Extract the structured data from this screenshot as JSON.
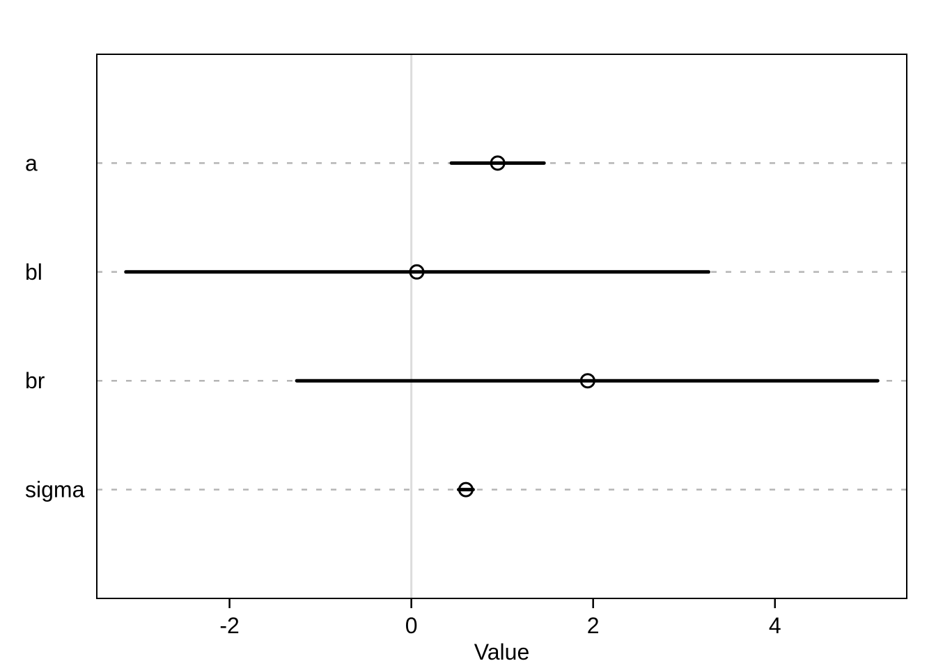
{
  "chart_data": {
    "type": "scatter",
    "subtype": "coefficient-interval-plot",
    "title": "",
    "xlabel": "Value",
    "ylabel": "",
    "categories": [
      "a",
      "bl",
      "br",
      "sigma"
    ],
    "series": [
      {
        "name": "a",
        "estimate": 0.95,
        "lower": 0.44,
        "upper": 1.46
      },
      {
        "name": "bl",
        "estimate": 0.06,
        "lower": -3.14,
        "upper": 3.27
      },
      {
        "name": "br",
        "estimate": 1.94,
        "lower": -1.26,
        "upper": 5.13
      },
      {
        "name": "sigma",
        "estimate": 0.6,
        "lower": 0.52,
        "upper": 0.68
      }
    ],
    "x_ticks": [
      -2,
      0,
      2,
      4
    ],
    "x_tick_labels": [
      "-2",
      "0",
      "2",
      "4"
    ],
    "xlim": [
      -3.46,
      5.45
    ],
    "reference_line_x": 0,
    "grid": "dotted-horizontal",
    "legend": "none",
    "colors": {
      "interval": "#000000",
      "point_stroke": "#000000",
      "grid": "#b5b5b5",
      "reference_line": "#dcdcdc",
      "frame": "#000000",
      "text": "#000000",
      "background": "#ffffff"
    }
  }
}
